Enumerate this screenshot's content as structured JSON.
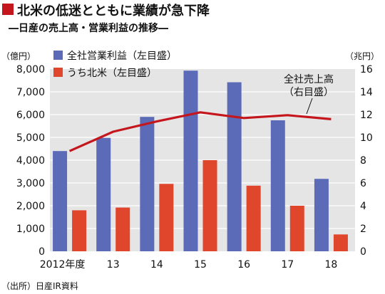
{
  "chart_data": {
    "type": "bar",
    "title": "北米の低迷とともに業績が急下降",
    "subtitle": "―日産の売上高・営業利益の推移―",
    "categories": [
      "2012年度",
      "13",
      "14",
      "15",
      "16",
      "17",
      "18"
    ],
    "left_axis": {
      "unit_label": "（億円）",
      "ylim": [
        0,
        8000
      ],
      "ticks": [
        "0",
        "1,000",
        "2,000",
        "3,000",
        "4,000",
        "5,000",
        "6,000",
        "7,000",
        "8,000"
      ]
    },
    "right_axis": {
      "unit_label": "（兆円）",
      "ylim": [
        0,
        16
      ],
      "ticks": [
        "0",
        "2",
        "4",
        "6",
        "8",
        "10",
        "12",
        "14",
        "16"
      ]
    },
    "series": [
      {
        "name": "全社営業利益（左目盛）",
        "type": "bar",
        "axis": "left",
        "color": "#5b6bb8",
        "values": [
          4400,
          4980,
          5900,
          7930,
          7420,
          5750,
          3180
        ]
      },
      {
        "name": "うち北米（左目盛）",
        "type": "bar",
        "axis": "left",
        "color": "#e0462c",
        "values": [
          1800,
          1920,
          2960,
          4000,
          2880,
          2000,
          740
        ]
      },
      {
        "name": "全社売上高（右目盛）",
        "type": "line",
        "axis": "right",
        "color": "#c4161c",
        "values": [
          8.8,
          10.5,
          11.4,
          12.2,
          11.7,
          11.95,
          11.6
        ]
      }
    ],
    "line_label": [
      "全社売上高",
      "（右目盛）"
    ],
    "grid": true,
    "legend_position": "top-left",
    "source": "（出所）日産IR資料",
    "colors": {
      "title_marker": "#c4161c",
      "plot_background": "#e5e5e5",
      "gridline": "#ffffff"
    }
  }
}
